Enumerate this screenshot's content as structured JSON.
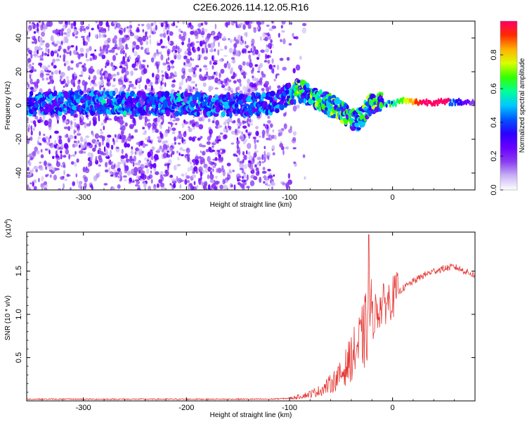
{
  "title": "C2E6.2026.114.12.05.R16",
  "chart_data": [
    {
      "type": "heatmap",
      "name": "spectrogram",
      "xlabel": "Height of straight line (km)",
      "ylabel": "Frequency (Hz)",
      "xlim": [
        -355,
        80
      ],
      "ylim": [
        -50,
        50
      ],
      "xticks": [
        -300,
        -200,
        -100,
        0
      ],
      "yticks": [
        -40,
        -20,
        0,
        20,
        40
      ],
      "ridge": {
        "x": [
          -355,
          -300,
          -250,
          -200,
          -150,
          -120,
          -110,
          -100,
          -90,
          -80,
          -70,
          -60,
          -50,
          -40,
          -35,
          -30,
          -25,
          -20,
          -15,
          -10,
          -5,
          0,
          10,
          20,
          40,
          60,
          80
        ],
        "y": [
          1,
          2,
          1,
          1,
          0,
          1,
          2,
          7,
          9,
          5,
          3,
          0,
          -4,
          -8,
          -10,
          -6,
          -1,
          2,
          3,
          2,
          1,
          1,
          3,
          2,
          2,
          2,
          2
        ]
      },
      "colorbar": {
        "label": "Normalized spectral amplitude",
        "range": [
          0,
          1
        ],
        "ticks": [
          "0.0",
          "0.2",
          "0.4",
          "0.6",
          "0.8"
        ],
        "tick_values": [
          0,
          0.2,
          0.4,
          0.6,
          0.8
        ],
        "colors": [
          "#ffffff",
          "#c9b3f5",
          "#8a3df0",
          "#6a00ff",
          "#2b00ff",
          "#0055ff",
          "#00c8ff",
          "#00ff9a",
          "#33ff00",
          "#d8ff00",
          "#ffb000",
          "#ff2a00",
          "#ff0066"
        ]
      }
    },
    {
      "type": "line",
      "name": "snr",
      "xlabel": "Height of straight line (km)",
      "ylabel": "SNR (10 * v/v)",
      "multiplier": "(x10",
      "multiplier_exp": "4",
      "xlim": [
        -355,
        80
      ],
      "ylim": [
        0,
        1.95
      ],
      "xticks": [
        -300,
        -200,
        -100,
        0
      ],
      "yticks": [
        0.5,
        1.0,
        1.5
      ],
      "ytick_labels": [
        "0.5",
        "1.0",
        "1.5"
      ],
      "color": "#e53935",
      "series": {
        "x": [
          -355,
          -120,
          -100,
          -90,
          -80,
          -70,
          -60,
          -50,
          -45,
          -40,
          -35,
          -30,
          -25,
          -22,
          -20,
          -18,
          -15,
          -10,
          -5,
          0,
          5,
          10,
          20,
          30,
          40,
          50,
          60,
          70,
          80
        ],
        "y": [
          0.02,
          0.02,
          0.03,
          0.05,
          0.08,
          0.12,
          0.2,
          0.3,
          0.4,
          0.5,
          0.6,
          0.7,
          0.85,
          1.2,
          0.9,
          1.0,
          1.05,
          1.1,
          1.15,
          1.2,
          1.25,
          1.3,
          1.38,
          1.45,
          1.5,
          1.53,
          1.55,
          1.5,
          1.45
        ]
      }
    }
  ]
}
